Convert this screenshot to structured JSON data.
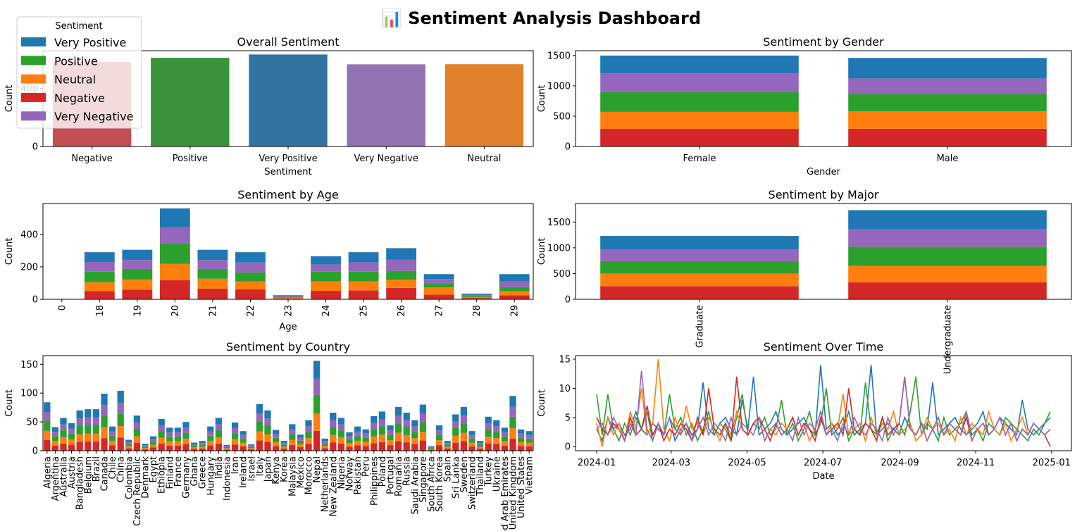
{
  "dashboard": {
    "title": "📊 Sentiment Analysis Dashboard",
    "colors": {
      "Very Positive": "#1f77b4",
      "Positive": "#2ca02c",
      "Neutral": "#ff7f0e",
      "Negative": "#d62728",
      "Very Negative": "#9467bd"
    },
    "legend": {
      "title": "Sentiment",
      "entries": [
        "Very Positive",
        "Positive",
        "Neutral",
        "Negative",
        "Very Negative"
      ],
      "placement": "upper-left"
    }
  },
  "chart_data": [
    {
      "id": "overall",
      "type": "bar",
      "title": "Overall Sentiment",
      "xlabel": "Sentiment",
      "ylabel": "Count",
      "categories": [
        "Negative",
        "Positive",
        "Very Positive",
        "Very Negative",
        "Neutral"
      ],
      "values": [
        583,
        611,
        634,
        566,
        567
      ],
      "bar_colors": [
        "#c44e52",
        "#3a923a",
        "#3274a1",
        "#9372b2",
        "#e1812c"
      ],
      "yticks": [
        0,
        200,
        400,
        600
      ],
      "ylim": [
        0,
        660
      ]
    },
    {
      "id": "gender",
      "type": "bar",
      "stacked": true,
      "title": "Sentiment by Gender",
      "xlabel": "Gender",
      "ylabel": "Count",
      "categories": [
        "Female",
        "Male"
      ],
      "stack_order": [
        "Negative",
        "Neutral",
        "Positive",
        "Very Negative",
        "Very Positive"
      ],
      "series": [
        {
          "name": "Negative",
          "values": [
            290,
            293
          ]
        },
        {
          "name": "Neutral",
          "values": [
            280,
            287
          ]
        },
        {
          "name": "Positive",
          "values": [
            325,
            286
          ]
        },
        {
          "name": "Very Negative",
          "values": [
            310,
            256
          ]
        },
        {
          "name": "Very Positive",
          "values": [
            295,
            339
          ]
        }
      ],
      "yticks": [
        0,
        500,
        1000,
        1500
      ],
      "ylim": [
        0,
        1580
      ]
    },
    {
      "id": "age",
      "type": "bar",
      "stacked": true,
      "title": "Sentiment by Age",
      "xlabel": "Age",
      "ylabel": "Count",
      "categories": [
        "0",
        "18",
        "19",
        "20",
        "21",
        "22",
        "23",
        "24",
        "25",
        "26",
        "27",
        "28",
        "29"
      ],
      "stack_order": [
        "Negative",
        "Neutral",
        "Positive",
        "Very Negative",
        "Very Positive"
      ],
      "series": [
        {
          "name": "Negative",
          "values": [
            0,
            50,
            60,
            118,
            65,
            62,
            5,
            52,
            55,
            70,
            28,
            8,
            25
          ]
        },
        {
          "name": "Neutral",
          "values": [
            0,
            55,
            62,
            100,
            62,
            48,
            5,
            58,
            55,
            50,
            45,
            7,
            25
          ]
        },
        {
          "name": "Positive",
          "values": [
            0,
            65,
            65,
            125,
            60,
            55,
            5,
            60,
            60,
            55,
            25,
            7,
            25
          ]
        },
        {
          "name": "Very Negative",
          "values": [
            0,
            60,
            55,
            100,
            55,
            62,
            5,
            45,
            58,
            70,
            27,
            6,
            35
          ]
        },
        {
          "name": "Very Positive",
          "values": [
            0,
            60,
            63,
            117,
            63,
            63,
            5,
            50,
            62,
            70,
            30,
            7,
            45
          ]
        }
      ],
      "yticks": [
        0,
        200,
        400
      ],
      "ylim": [
        0,
        590
      ]
    },
    {
      "id": "major",
      "type": "bar",
      "stacked": true,
      "title": "Sentiment by Major",
      "xlabel": "",
      "ylabel": "Count",
      "categories": [
        "Graduate",
        "Undergraduate"
      ],
      "stack_order": [
        "Negative",
        "Neutral",
        "Positive",
        "Very Negative",
        "Very Positive"
      ],
      "series": [
        {
          "name": "Negative",
          "values": [
            255,
            328
          ]
        },
        {
          "name": "Neutral",
          "values": [
            245,
            322
          ]
        },
        {
          "name": "Positive",
          "values": [
            240,
            371
          ]
        },
        {
          "name": "Very Negative",
          "values": [
            230,
            336
          ]
        },
        {
          "name": "Very Positive",
          "values": [
            260,
            374
          ]
        }
      ],
      "yticks": [
        0,
        500,
        1000,
        1500
      ],
      "ylim": [
        0,
        1860
      ]
    },
    {
      "id": "country",
      "type": "bar",
      "stacked": true,
      "title": "Sentiment by Country",
      "xlabel": "",
      "ylabel": "Count",
      "categories": [
        "Algeria",
        "Argentina",
        "Australia",
        "Austria",
        "Bangladesh",
        "Belgium",
        "Brazil",
        "Canada",
        "Chile",
        "China",
        "Colombia",
        "Czech Republic",
        "Denmark",
        "Egypt",
        "Ethiopia",
        "Finland",
        "France",
        "Germany",
        "Ghana",
        "Greece",
        "Hungary",
        "India",
        "Indonesia",
        "Iran",
        "Ireland",
        "Israel",
        "Italy",
        "Japan",
        "Kenya",
        "Korea",
        "Malaysia",
        "Mexico",
        "Morocco",
        "Nepal",
        "Netherlands",
        "New Zealand",
        "Nigeria",
        "Norway",
        "Pakistan",
        "Peru",
        "Philippines",
        "Poland",
        "Portugal",
        "Romania",
        "Russia",
        "Saudi Arabia",
        "Singapore",
        "South Africa",
        "South Korea",
        "Spain",
        "Sri Lanka",
        "Sweden",
        "Switzerland",
        "Thailand",
        "Turkey",
        "Ukraine",
        "United Arab Emirates",
        "United Kingdom",
        "United States",
        "Vietnam"
      ],
      "totals": [
        84,
        41,
        57,
        48,
        70,
        72,
        72,
        99,
        42,
        104,
        19,
        61,
        12,
        25,
        55,
        40,
        40,
        50,
        14,
        17,
        42,
        57,
        10,
        49,
        34,
        11,
        81,
        70,
        36,
        17,
        46,
        28,
        53,
        156,
        21,
        66,
        57,
        32,
        42,
        37,
        60,
        68,
        44,
        76,
        66,
        53,
        80,
        8,
        44,
        17,
        63,
        76,
        34,
        17,
        59,
        53,
        40,
        95,
        37,
        34
      ],
      "stack_order": [
        "Negative",
        "Neutral",
        "Positive",
        "Very Negative",
        "Very Positive"
      ],
      "stack_shares": [
        0.22,
        0.19,
        0.21,
        0.18,
        0.2
      ],
      "yticks": [
        0,
        50,
        100,
        150
      ],
      "ylim": [
        0,
        165
      ]
    },
    {
      "id": "time",
      "type": "line",
      "title": "Sentiment Over Time",
      "xlabel": "Date",
      "ylabel": "Count",
      "x_range": [
        "2024-01-01",
        "2024-12-31"
      ],
      "xticks": [
        "2024-01",
        "2024-03",
        "2024-05",
        "2024-07",
        "2024-09",
        "2024-11",
        "2025-01"
      ],
      "yticks": [
        0,
        5,
        10,
        15
      ],
      "ylim": [
        -0.7,
        15.6
      ],
      "series": [
        {
          "name": "Very Positive",
          "values": [
            3,
            1,
            5,
            3,
            4,
            2,
            3,
            6,
            3,
            2,
            4,
            3,
            2,
            5,
            1,
            3,
            4,
            2,
            3,
            11,
            3,
            2,
            4,
            5,
            3,
            2,
            8,
            3,
            12,
            2,
            3,
            4,
            6,
            3,
            2,
            3,
            4,
            5,
            3,
            2,
            14,
            3,
            4,
            2,
            3,
            6,
            2,
            3,
            4,
            14,
            2,
            3,
            4,
            3,
            2,
            5,
            3,
            2,
            4,
            3,
            11,
            2,
            3,
            4,
            5,
            3,
            2,
            3,
            4,
            6,
            2,
            3,
            5,
            4,
            3,
            2,
            8,
            3,
            2,
            3,
            4,
            5
          ]
        },
        {
          "name": "Positive",
          "values": [
            9,
            2,
            9,
            3,
            1,
            4,
            2,
            5,
            3,
            6,
            1,
            4,
            2,
            9,
            3,
            5,
            2,
            4,
            1,
            3,
            6,
            2,
            4,
            3,
            1,
            5,
            9,
            2,
            4,
            3,
            5,
            2,
            3,
            8,
            2,
            4,
            1,
            3,
            6,
            2,
            4,
            10,
            2,
            3,
            5,
            1,
            3,
            2,
            11,
            3,
            2,
            5,
            1,
            3,
            4,
            2,
            6,
            12,
            2,
            4,
            3,
            1,
            5,
            2,
            3,
            4,
            6,
            2,
            3,
            1,
            4,
            3,
            2,
            5,
            4,
            3,
            2,
            1,
            3,
            2,
            4,
            6
          ]
        },
        {
          "name": "Neutral",
          "values": [
            4,
            0,
            5,
            2,
            4,
            1,
            6,
            3,
            10,
            2,
            4,
            15,
            3,
            1,
            5,
            2,
            7,
            3,
            4,
            2,
            5,
            3,
            1,
            4,
            2,
            6,
            3,
            2,
            4,
            5,
            1,
            3,
            2,
            4,
            3,
            5,
            2,
            4,
            1,
            3,
            6,
            2,
            4,
            3,
            9,
            2,
            3,
            4,
            1,
            5,
            2,
            4,
            3,
            6,
            2,
            3,
            4,
            1,
            2,
            5,
            3,
            4,
            2,
            3,
            1,
            5,
            2,
            4,
            3,
            2,
            6,
            3,
            2,
            4,
            1,
            3,
            5,
            2,
            4,
            3,
            2,
            3
          ]
        },
        {
          "name": "Negative",
          "values": [
            5,
            3,
            2,
            4,
            3,
            1,
            5,
            2,
            3,
            7,
            2,
            4,
            1,
            3,
            2,
            4,
            3,
            1,
            5,
            2,
            10,
            3,
            2,
            4,
            1,
            12,
            3,
            2,
            4,
            5,
            3,
            1,
            4,
            2,
            3,
            5,
            2,
            4,
            3,
            1,
            5,
            2,
            3,
            4,
            2,
            10,
            3,
            2,
            4,
            3,
            1,
            5,
            2,
            3,
            4,
            12,
            3,
            2,
            4,
            1,
            3,
            5,
            2,
            4,
            3,
            2,
            5,
            1,
            3,
            4,
            2,
            3,
            5,
            2,
            4,
            1,
            3,
            2,
            4,
            3,
            2,
            0
          ]
        },
        {
          "name": "Very Negative",
          "values": [
            3,
            4,
            2,
            5,
            3,
            1,
            4,
            2,
            13,
            3,
            1,
            4,
            2,
            5,
            3,
            2,
            4,
            1,
            3,
            5,
            2,
            4,
            3,
            1,
            5,
            2,
            4,
            3,
            2,
            5,
            1,
            3,
            4,
            2,
            3,
            1,
            5,
            2,
            4,
            3,
            6,
            2,
            3,
            1,
            4,
            2,
            5,
            3,
            2,
            4,
            3,
            1,
            5,
            2,
            4,
            12,
            3,
            2,
            4,
            1,
            3,
            5,
            2,
            4,
            3,
            2,
            6,
            1,
            3,
            4,
            2,
            3,
            5,
            2,
            4,
            1,
            3,
            2,
            4,
            3,
            2,
            3
          ]
        }
      ]
    }
  ]
}
